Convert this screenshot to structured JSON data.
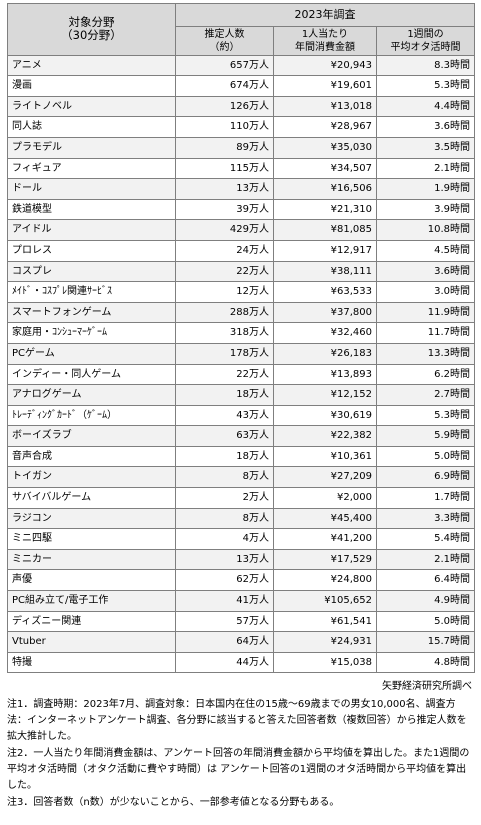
{
  "header": {
    "category_line1": "対象分野",
    "category_line2": "（30分野）",
    "year": "2023年調査",
    "col1_line1": "推定人数",
    "col1_line2": "（約）",
    "col2_line1": "1人当たり",
    "col2_line2": "年間消費金額",
    "col3_line1": "1週間の",
    "col3_line2": "平均オタ活時間"
  },
  "rows": [
    {
      "category": "アニメ",
      "population": "657万人",
      "spending": "¥20,943",
      "hours": "8.3時間"
    },
    {
      "category": "漫画",
      "population": "674万人",
      "spending": "¥19,601",
      "hours": "5.3時間"
    },
    {
      "category": "ライトノベル",
      "population": "126万人",
      "spending": "¥13,018",
      "hours": "4.4時間"
    },
    {
      "category": "同人誌",
      "population": "110万人",
      "spending": "¥28,967",
      "hours": "3.6時間"
    },
    {
      "category": "プラモデル",
      "population": "89万人",
      "spending": "¥35,030",
      "hours": "3.5時間"
    },
    {
      "category": "フィギュア",
      "population": "115万人",
      "spending": "¥34,507",
      "hours": "2.1時間"
    },
    {
      "category": "ドール",
      "population": "13万人",
      "spending": "¥16,506",
      "hours": "1.9時間"
    },
    {
      "category": "鉄道模型",
      "population": "39万人",
      "spending": "¥21,310",
      "hours": "3.9時間"
    },
    {
      "category": "アイドル",
      "population": "429万人",
      "spending": "¥81,085",
      "hours": "10.8時間"
    },
    {
      "category": "プロレス",
      "population": "24万人",
      "spending": "¥12,917",
      "hours": "4.5時間"
    },
    {
      "category": "コスプレ",
      "population": "22万人",
      "spending": "¥38,111",
      "hours": "3.6時間"
    },
    {
      "category": "ﾒｲﾄﾞ・ｺｽﾌﾟﾚ関連ｻｰﾋﾞｽ",
      "population": "12万人",
      "spending": "¥63,533",
      "hours": "3.0時間"
    },
    {
      "category": "スマートフォンゲーム",
      "population": "288万人",
      "spending": "¥37,800",
      "hours": "11.9時間"
    },
    {
      "category": "家庭用・ｺﾝｼｭｰﾏｰｹﾞｰﾑ",
      "population": "318万人",
      "spending": "¥32,460",
      "hours": "11.7時間"
    },
    {
      "category": "PCゲーム",
      "population": "178万人",
      "spending": "¥26,183",
      "hours": "13.3時間"
    },
    {
      "category": "インディー・同人ゲーム",
      "population": "22万人",
      "spending": "¥13,893",
      "hours": "6.2時間"
    },
    {
      "category": "アナログゲーム",
      "population": "18万人",
      "spending": "¥12,152",
      "hours": "2.7時間"
    },
    {
      "category": "ﾄﾚｰﾃﾞｨﾝｸﾞｶｰﾄﾞ（ｹﾞｰﾑ）",
      "population": "43万人",
      "spending": "¥30,619",
      "hours": "5.3時間"
    },
    {
      "category": "ボーイズラブ",
      "population": "63万人",
      "spending": "¥22,382",
      "hours": "5.9時間"
    },
    {
      "category": "音声合成",
      "population": "18万人",
      "spending": "¥10,361",
      "hours": "5.0時間"
    },
    {
      "category": "トイガン",
      "population": "8万人",
      "spending": "¥27,209",
      "hours": "6.9時間"
    },
    {
      "category": "サバイバルゲーム",
      "population": "2万人",
      "spending": "¥2,000",
      "hours": "1.7時間"
    },
    {
      "category": "ラジコン",
      "population": "8万人",
      "spending": "¥45,400",
      "hours": "3.3時間"
    },
    {
      "category": "ミニ四駆",
      "population": "4万人",
      "spending": "¥41,200",
      "hours": "5.4時間"
    },
    {
      "category": "ミニカー",
      "population": "13万人",
      "spending": "¥17,529",
      "hours": "2.1時間"
    },
    {
      "category": "声優",
      "population": "62万人",
      "spending": "¥24,800",
      "hours": "6.4時間"
    },
    {
      "category": "PC組み立て/電子工作",
      "population": "41万人",
      "spending": "¥105,652",
      "hours": "4.9時間"
    },
    {
      "category": "ディズニー関連",
      "population": "57万人",
      "spending": "¥61,541",
      "hours": "5.0時間"
    },
    {
      "category": "Vtuber",
      "population": "64万人",
      "spending": "¥24,931",
      "hours": "15.7時間"
    },
    {
      "category": "特撮",
      "population": "44万人",
      "spending": "¥15,038",
      "hours": "4.8時間"
    }
  ],
  "source": "矢野経済研究所調べ",
  "notes": [
    "注1．調査時期：2023年7月、調査対象：日本国内在住の15歳～69歳までの男女10,000名、調査方法：インターネットアンケート調査、各分野に該当すると答えた回答者数（複数回答）から推定人数を拡大推計した。",
    "注2．一人当たり年間消費金額は、アンケート回答の年間消費金額から平均値を算出した。また1週間の平均オタ活時間（オタク活動に費やす時間）は アンケート回答の1週間のオタ活時間から平均値を算出した。",
    "注3．回答者数（n数）が少ないことから、一部参考値となる分野もある。"
  ],
  "colors": {
    "header_bg": "#d9d9d9",
    "stripe_bg": "#f2f2f2",
    "border": "#7f7f7f"
  }
}
